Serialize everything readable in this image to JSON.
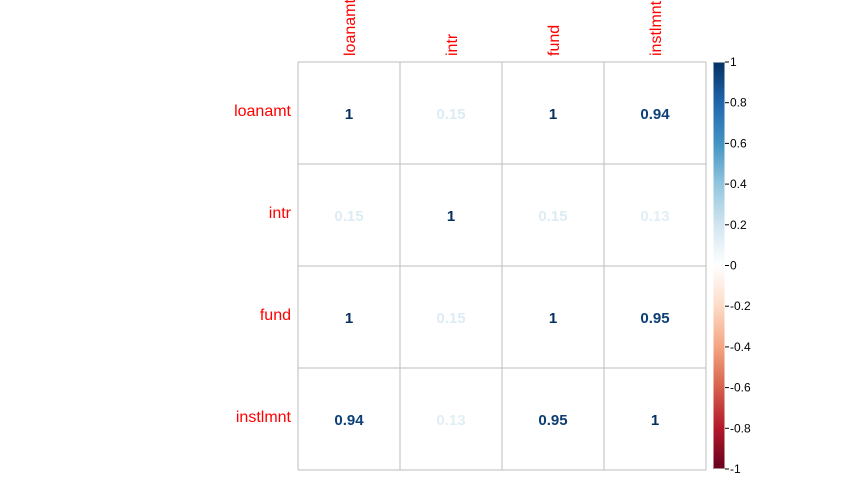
{
  "chart_data": {
    "type": "heatmap",
    "variables": [
      "loanamt",
      "intr",
      "fund",
      "instlmnt"
    ],
    "matrix": [
      [
        1,
        0.15,
        1,
        0.94
      ],
      [
        0.15,
        1,
        0.15,
        0.13
      ],
      [
        1,
        0.15,
        1,
        0.95
      ],
      [
        0.94,
        0.13,
        0.95,
        1
      ]
    ],
    "cell_labels": [
      [
        "1",
        "0.15",
        "1",
        "0.94"
      ],
      [
        "0.15",
        "1",
        "0.15",
        "0.13"
      ],
      [
        "1",
        "0.15",
        "1",
        "0.95"
      ],
      [
        "0.94",
        "0.13",
        "0.95",
        "1"
      ]
    ],
    "colorbar": {
      "range": [
        -1,
        1
      ],
      "ticks": [
        "1",
        "0.8",
        "0.6",
        "0.4",
        "0.2",
        "0",
        "-0.2",
        "-0.4",
        "-0.6",
        "-0.8",
        "-1"
      ],
      "tick_values": [
        1,
        0.8,
        0.6,
        0.4,
        0.2,
        0,
        -0.2,
        -0.4,
        -0.6,
        -0.8,
        -1
      ],
      "colors_low_to_high": [
        "#67001F",
        "#B2182B",
        "#D6604D",
        "#F4A582",
        "#FDDBC7",
        "#FFFFFF",
        "#D1E5F0",
        "#92C5DE",
        "#4393C3",
        "#2166AC",
        "#053061"
      ]
    },
    "label_color": "#FF0000",
    "grid_color": "#BEBEBE"
  }
}
